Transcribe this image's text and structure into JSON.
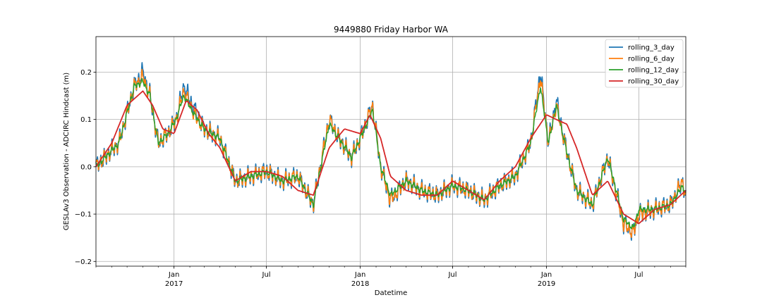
{
  "chart_data": {
    "type": "line",
    "title": "9449880 Friday Harbor WA",
    "xlabel": "Datetime",
    "ylabel": "GESLAv3 Observation - ADCIRC Hindcast (m)",
    "xlim": [
      "2016-08-01",
      "2019-10-01"
    ],
    "ylim": [
      -0.21,
      0.275
    ],
    "grid": true,
    "legend_position": "top-right",
    "y_ticks": [
      -0.2,
      -0.1,
      0.0,
      0.1,
      0.2
    ],
    "y_tick_labels": [
      "−0.2",
      "−0.1",
      "0.0",
      "0.1",
      "0.2"
    ],
    "x_major_ticks": [
      {
        "date": "2017-01-01",
        "label": "Jan",
        "year": "2017"
      },
      {
        "date": "2017-07-01",
        "label": "Jul",
        "year": ""
      },
      {
        "date": "2018-01-01",
        "label": "Jan",
        "year": "2018"
      },
      {
        "date": "2018-07-01",
        "label": "Jul",
        "year": ""
      },
      {
        "date": "2019-01-01",
        "label": "Jan",
        "year": "2019"
      },
      {
        "date": "2019-07-01",
        "label": "Jul",
        "year": ""
      }
    ],
    "series": [
      {
        "name": "rolling_3_day",
        "color": "#1f77b4",
        "noise": 0.022,
        "x": [
          "2016-08-01",
          "2016-09-15",
          "2016-10-15",
          "2016-11-01",
          "2016-11-15",
          "2016-12-01",
          "2016-12-20",
          "2017-01-05",
          "2017-01-20",
          "2017-02-10",
          "2017-03-01",
          "2017-04-01",
          "2017-05-01",
          "2017-06-01",
          "2017-07-01",
          "2017-08-01",
          "2017-09-01",
          "2017-10-01",
          "2017-11-01",
          "2017-11-20",
          "2017-12-15",
          "2018-01-05",
          "2018-01-25",
          "2018-02-10",
          "2018-03-01",
          "2018-04-01",
          "2018-05-01",
          "2018-06-01",
          "2018-07-01",
          "2018-08-01",
          "2018-09-01",
          "2018-10-01",
          "2018-11-01",
          "2018-12-01",
          "2018-12-20",
          "2019-01-05",
          "2019-01-20",
          "2019-02-10",
          "2019-03-01",
          "2019-04-01",
          "2019-05-01",
          "2019-06-01",
          "2019-06-20",
          "2019-07-01",
          "2019-08-01",
          "2019-09-01",
          "2019-09-25",
          "2019-10-01"
        ],
        "y": [
          0.0,
          0.05,
          0.17,
          0.2,
          0.15,
          0.05,
          0.07,
          0.1,
          0.17,
          0.12,
          0.08,
          0.06,
          -0.03,
          -0.02,
          -0.01,
          -0.03,
          -0.02,
          -0.08,
          0.1,
          0.06,
          0.02,
          0.07,
          0.13,
          0.0,
          -0.07,
          -0.03,
          -0.05,
          -0.06,
          -0.04,
          -0.05,
          -0.07,
          -0.04,
          -0.02,
          0.05,
          0.2,
          0.05,
          0.14,
          0.03,
          -0.05,
          -0.08,
          0.02,
          -0.12,
          -0.14,
          -0.1,
          -0.09,
          -0.08,
          -0.03,
          -0.07
        ]
      },
      {
        "name": "rolling_6_day",
        "color": "#ff7f0e",
        "noise": 0.017,
        "x": [
          "2016-08-01",
          "2016-09-15",
          "2016-10-15",
          "2016-11-01",
          "2016-11-15",
          "2016-12-01",
          "2016-12-20",
          "2017-01-05",
          "2017-01-20",
          "2017-02-10",
          "2017-03-01",
          "2017-04-01",
          "2017-05-01",
          "2017-06-01",
          "2017-07-01",
          "2017-08-01",
          "2017-09-01",
          "2017-10-01",
          "2017-11-01",
          "2017-11-20",
          "2017-12-15",
          "2018-01-05",
          "2018-01-25",
          "2018-02-10",
          "2018-03-01",
          "2018-04-01",
          "2018-05-01",
          "2018-06-01",
          "2018-07-01",
          "2018-08-01",
          "2018-09-01",
          "2018-10-01",
          "2018-11-01",
          "2018-12-01",
          "2018-12-20",
          "2019-01-05",
          "2019-01-20",
          "2019-02-10",
          "2019-03-01",
          "2019-04-01",
          "2019-05-01",
          "2019-06-01",
          "2019-06-20",
          "2019-07-01",
          "2019-08-01",
          "2019-09-01",
          "2019-09-25",
          "2019-10-01"
        ],
        "y": [
          0.0,
          0.05,
          0.17,
          0.19,
          0.15,
          0.05,
          0.07,
          0.1,
          0.16,
          0.11,
          0.08,
          0.06,
          -0.03,
          -0.02,
          -0.01,
          -0.03,
          -0.02,
          -0.08,
          0.1,
          0.06,
          0.02,
          0.07,
          0.13,
          0.0,
          -0.07,
          -0.03,
          -0.05,
          -0.06,
          -0.04,
          -0.05,
          -0.07,
          -0.04,
          -0.02,
          0.05,
          0.19,
          0.05,
          0.13,
          0.03,
          -0.05,
          -0.08,
          0.02,
          -0.12,
          -0.14,
          -0.1,
          -0.09,
          -0.08,
          -0.03,
          -0.07
        ]
      },
      {
        "name": "rolling_12_day",
        "color": "#2ca02c",
        "noise": 0.007,
        "x": [
          "2016-08-01",
          "2016-09-15",
          "2016-10-15",
          "2016-11-01",
          "2016-11-15",
          "2016-12-01",
          "2016-12-20",
          "2017-01-05",
          "2017-01-20",
          "2017-02-10",
          "2017-03-01",
          "2017-04-01",
          "2017-05-01",
          "2017-06-01",
          "2017-07-01",
          "2017-08-01",
          "2017-09-01",
          "2017-10-01",
          "2017-11-01",
          "2017-11-20",
          "2017-12-15",
          "2018-01-05",
          "2018-01-25",
          "2018-02-10",
          "2018-03-01",
          "2018-04-01",
          "2018-05-01",
          "2018-06-01",
          "2018-07-01",
          "2018-08-01",
          "2018-09-01",
          "2018-10-01",
          "2018-11-01",
          "2018-12-01",
          "2018-12-20",
          "2019-01-05",
          "2019-01-20",
          "2019-02-10",
          "2019-03-01",
          "2019-04-01",
          "2019-05-01",
          "2019-06-01",
          "2019-06-20",
          "2019-07-01",
          "2019-08-01",
          "2019-09-01",
          "2019-09-25",
          "2019-10-01"
        ],
        "y": [
          0.0,
          0.05,
          0.17,
          0.18,
          0.15,
          0.05,
          0.07,
          0.1,
          0.15,
          0.11,
          0.08,
          0.06,
          -0.03,
          -0.02,
          -0.01,
          -0.03,
          -0.02,
          -0.08,
          0.09,
          0.06,
          0.02,
          0.07,
          0.12,
          0.0,
          -0.06,
          -0.03,
          -0.05,
          -0.06,
          -0.04,
          -0.05,
          -0.07,
          -0.04,
          -0.02,
          0.05,
          0.17,
          0.05,
          0.13,
          0.03,
          -0.05,
          -0.08,
          0.02,
          -0.11,
          -0.13,
          -0.09,
          -0.09,
          -0.08,
          -0.04,
          -0.06
        ]
      },
      {
        "name": "rolling_30_day",
        "color": "#d62728",
        "noise": 0.0,
        "x": [
          "2016-08-01",
          "2016-09-01",
          "2016-10-01",
          "2016-11-01",
          "2016-11-20",
          "2016-12-10",
          "2017-01-01",
          "2017-01-25",
          "2017-02-15",
          "2017-03-10",
          "2017-04-01",
          "2017-05-01",
          "2017-06-01",
          "2017-07-01",
          "2017-08-01",
          "2017-09-01",
          "2017-10-01",
          "2017-11-01",
          "2017-12-01",
          "2018-01-01",
          "2018-01-20",
          "2018-02-10",
          "2018-03-01",
          "2018-04-01",
          "2018-05-01",
          "2018-06-01",
          "2018-07-01",
          "2018-08-01",
          "2018-09-01",
          "2018-10-01",
          "2018-11-01",
          "2018-12-01",
          "2019-01-01",
          "2019-01-20",
          "2019-02-10",
          "2019-03-01",
          "2019-04-01",
          "2019-05-01",
          "2019-06-01",
          "2019-07-01",
          "2019-08-01",
          "2019-09-01",
          "2019-10-01"
        ],
        "y": [
          0.0,
          0.05,
          0.13,
          0.16,
          0.13,
          0.08,
          0.07,
          0.14,
          0.12,
          0.07,
          0.04,
          -0.03,
          -0.01,
          -0.01,
          -0.02,
          -0.05,
          -0.06,
          0.04,
          0.08,
          0.07,
          0.11,
          0.06,
          -0.02,
          -0.05,
          -0.06,
          -0.06,
          -0.03,
          -0.05,
          -0.07,
          -0.03,
          0.0,
          0.06,
          0.11,
          0.1,
          0.09,
          0.04,
          -0.06,
          -0.03,
          -0.1,
          -0.12,
          -0.09,
          -0.08,
          -0.05
        ]
      }
    ]
  }
}
